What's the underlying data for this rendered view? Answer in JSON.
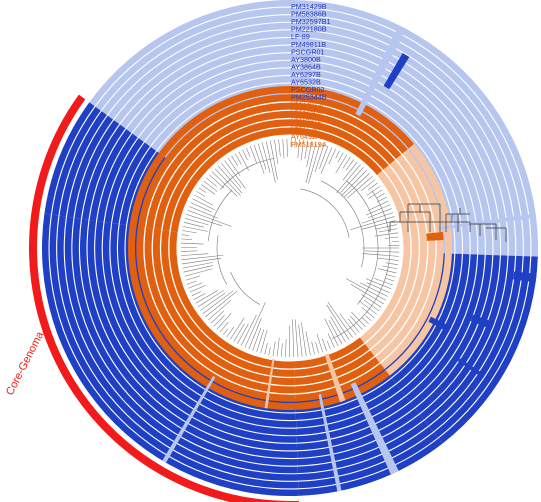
{
  "colors": {
    "blue_dark": "#1f3fc4",
    "blue_light": "#b6c6ef",
    "orange_dark": "#e0600f",
    "orange_light": "#f6c6a4",
    "core_red": "#f21b1b",
    "tree_gray": "#777777"
  },
  "blue_strains": [
    "PM31429B",
    "PM58386B",
    "PM32597B1",
    "PM22180B",
    "LF-89",
    "PM49811B",
    "PSCGR01",
    "AY3800B",
    "AY3864B",
    "AY6297B",
    "AY6532B",
    "PSCGR02",
    "PM25344B"
  ],
  "orange_strains": [
    "PM23019A",
    "PM37984A",
    "PM15972A1",
    "PM21567A",
    "AY6492A",
    "PM51819A"
  ],
  "core_label": "Core-Genoma"
}
